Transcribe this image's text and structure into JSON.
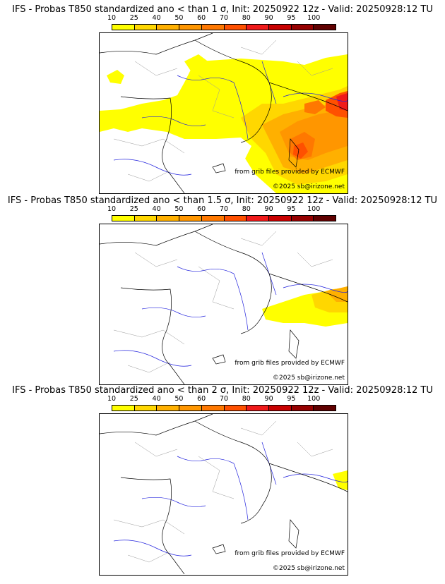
{
  "colorbar": {
    "ticks": [
      "10",
      "25",
      "40",
      "50",
      "60",
      "70",
      "80",
      "90",
      "95",
      "100"
    ],
    "colors": [
      "#ffff00",
      "#ffd700",
      "#ffb000",
      "#ff9600",
      "#ff7800",
      "#ff5000",
      "#f01a1a",
      "#c80000",
      "#960000",
      "#600000"
    ]
  },
  "panels": [
    {
      "title": "IFS - Probas T850  standardized ano < than 1 σ, Init: 20250922 12z - Valid: 20250928:12 TU",
      "credit_source": "from grib files provided by ECMWF",
      "credit_copyright": "©2025 sb@irizone.net"
    },
    {
      "title": "IFS - Probas T850  standardized ano < than 1.5 σ, Init: 20250922 12z - Valid: 20250928:12 TU",
      "credit_source": "from grib files provided by ECMWF",
      "credit_copyright": "©2025 sb@irizone.net"
    },
    {
      "title": "IFS - Probas T850  standardized ano < than 2 σ, Init: 20250922 12z - Valid: 20250928:12 TU",
      "credit_source": "from grib files provided by ECMWF",
      "credit_copyright": "©2025 sb@irizone.net"
    }
  ]
}
